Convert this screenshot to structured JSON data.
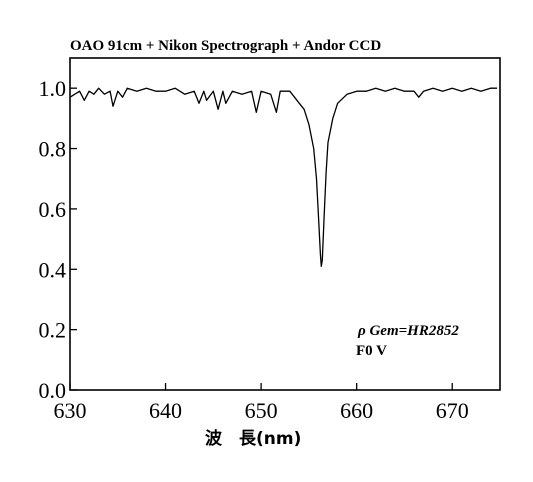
{
  "chart_data": {
    "type": "line",
    "title": "OAO 91cm + Nikon Spectrograph + Andor CCD",
    "xlabel": "波　長(nm)",
    "ylabel": "",
    "xlim": [
      630,
      675
    ],
    "ylim": [
      0.0,
      1.1
    ],
    "x_ticks": [
      "630",
      "640",
      "650",
      "660",
      "670"
    ],
    "y_ticks": [
      "0.0",
      "0.2",
      "0.4",
      "0.6",
      "0.8",
      "1.0"
    ],
    "grid": false,
    "annotations": [
      "ρ Gem=HR2852",
      "F0 V"
    ],
    "series": [
      {
        "x": [
          630.0,
          631.0,
          631.5,
          632.0,
          632.5,
          633.0,
          633.6,
          634.2,
          634.5,
          635.0,
          635.5,
          636.0,
          637.0,
          638.0,
          639.0,
          640.0,
          641.0,
          642.0,
          643.0,
          643.5,
          644.0,
          644.3,
          645.0,
          645.5,
          646.0,
          646.3,
          647.0,
          648.0,
          649.0,
          649.5,
          650.0,
          651.0,
          651.6,
          652.0,
          653.0,
          654.0,
          654.5,
          655.0,
          655.5,
          655.8,
          656.0,
          656.2,
          656.3,
          656.4,
          656.6,
          656.8,
          657.0,
          657.5,
          658.0,
          659.0,
          660.0,
          661.0,
          662.0,
          663.0,
          664.0,
          665.0,
          666.0,
          666.5,
          667.0,
          668.0,
          669.0,
          670.0,
          671.0,
          672.0,
          673.0,
          674.0,
          674.7
        ],
        "y": [
          0.97,
          0.99,
          0.96,
          0.99,
          0.98,
          1.0,
          0.98,
          0.99,
          0.94,
          0.99,
          0.97,
          1.0,
          0.99,
          1.0,
          0.99,
          0.99,
          1.0,
          0.98,
          0.99,
          0.95,
          0.99,
          0.96,
          0.99,
          0.93,
          0.99,
          0.95,
          0.99,
          0.98,
          0.99,
          0.92,
          0.99,
          0.98,
          0.92,
          0.99,
          0.99,
          0.95,
          0.93,
          0.88,
          0.8,
          0.7,
          0.58,
          0.45,
          0.41,
          0.43,
          0.58,
          0.72,
          0.82,
          0.9,
          0.95,
          0.98,
          0.99,
          0.99,
          1.0,
          0.99,
          1.0,
          0.99,
          0.99,
          0.97,
          0.99,
          1.0,
          0.99,
          1.0,
          0.99,
          1.0,
          0.99,
          1.0,
          1.0
        ]
      }
    ]
  }
}
